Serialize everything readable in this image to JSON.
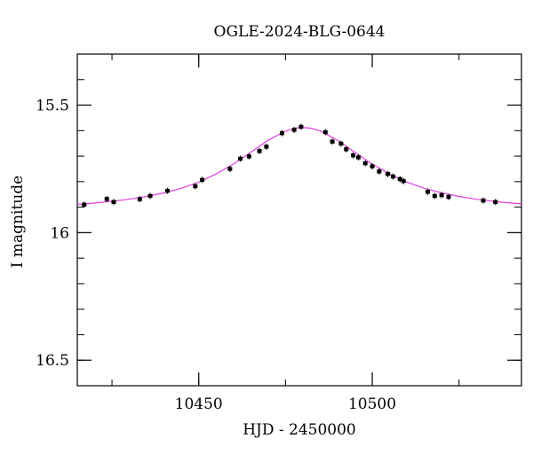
{
  "chart_data": {
    "type": "scatter",
    "title": "OGLE-2024-BLG-0644",
    "xlabel": "HJD - 2450000",
    "ylabel": "I magnitude",
    "xlim": [
      10415,
      10543
    ],
    "ylim": [
      16.6,
      15.3
    ],
    "y_inverted": true,
    "grid": false,
    "x_major_ticks": [
      10450,
      10500
    ],
    "x_minor_ticks": [
      10425,
      10450,
      10475,
      10500,
      10525
    ],
    "y_major_ticks": [
      15.5,
      16,
      16.5
    ],
    "y_major_tick_labels": [
      "15.5",
      "16",
      "16.5"
    ],
    "y_minor_ticks": [
      15.4,
      15.5,
      15.6,
      15.7,
      15.8,
      15.9,
      16.0,
      16.1,
      16.2,
      16.3,
      16.4,
      16.5
    ],
    "point_color": "#000000",
    "model_color": "#e040e0",
    "points": [
      {
        "x": 10417.0,
        "y": 15.89
      },
      {
        "x": 10423.5,
        "y": 15.868
      },
      {
        "x": 10425.5,
        "y": 15.88
      },
      {
        "x": 10433.0,
        "y": 15.869
      },
      {
        "x": 10436.0,
        "y": 15.856
      },
      {
        "x": 10441.0,
        "y": 15.836
      },
      {
        "x": 10449.0,
        "y": 15.818
      },
      {
        "x": 10451.0,
        "y": 15.793
      },
      {
        "x": 10459.0,
        "y": 15.75
      },
      {
        "x": 10462.0,
        "y": 15.71
      },
      {
        "x": 10464.5,
        "y": 15.701
      },
      {
        "x": 10467.5,
        "y": 15.68
      },
      {
        "x": 10469.5,
        "y": 15.663
      },
      {
        "x": 10474.0,
        "y": 15.61
      },
      {
        "x": 10477.5,
        "y": 15.597
      },
      {
        "x": 10479.5,
        "y": 15.585
      },
      {
        "x": 10486.5,
        "y": 15.606
      },
      {
        "x": 10488.5,
        "y": 15.643
      },
      {
        "x": 10491.0,
        "y": 15.651
      },
      {
        "x": 10492.5,
        "y": 15.673
      },
      {
        "x": 10494.5,
        "y": 15.697
      },
      {
        "x": 10496.0,
        "y": 15.705
      },
      {
        "x": 10498.0,
        "y": 15.728
      },
      {
        "x": 10500.0,
        "y": 15.74
      },
      {
        "x": 10502.0,
        "y": 15.76
      },
      {
        "x": 10504.5,
        "y": 15.77
      },
      {
        "x": 10506.0,
        "y": 15.78
      },
      {
        "x": 10508.0,
        "y": 15.79
      },
      {
        "x": 10509.0,
        "y": 15.798
      },
      {
        "x": 10516.0,
        "y": 15.84
      },
      {
        "x": 10518.0,
        "y": 15.856
      },
      {
        "x": 10520.0,
        "y": 15.853
      },
      {
        "x": 10522.0,
        "y": 15.86
      },
      {
        "x": 10532.0,
        "y": 15.874
      },
      {
        "x": 10535.5,
        "y": 15.88
      }
    ],
    "model": {
      "type": "microlensing-paczynski",
      "x": [
        10415,
        10420,
        10425,
        10430,
        10435,
        10440,
        10445,
        10450,
        10455,
        10460,
        10465,
        10470,
        10475,
        10478,
        10480,
        10482,
        10485,
        10490,
        10495,
        10500,
        10505,
        10510,
        10515,
        10520,
        10525,
        10530,
        10535,
        10540,
        10543
      ],
      "y": [
        15.889,
        15.884,
        15.877,
        15.869,
        15.858,
        15.844,
        15.826,
        15.802,
        15.77,
        15.731,
        15.685,
        15.638,
        15.602,
        15.59,
        15.588,
        15.59,
        15.601,
        15.638,
        15.685,
        15.731,
        15.77,
        15.802,
        15.826,
        15.844,
        15.858,
        15.869,
        15.877,
        15.884,
        15.887
      ]
    }
  }
}
